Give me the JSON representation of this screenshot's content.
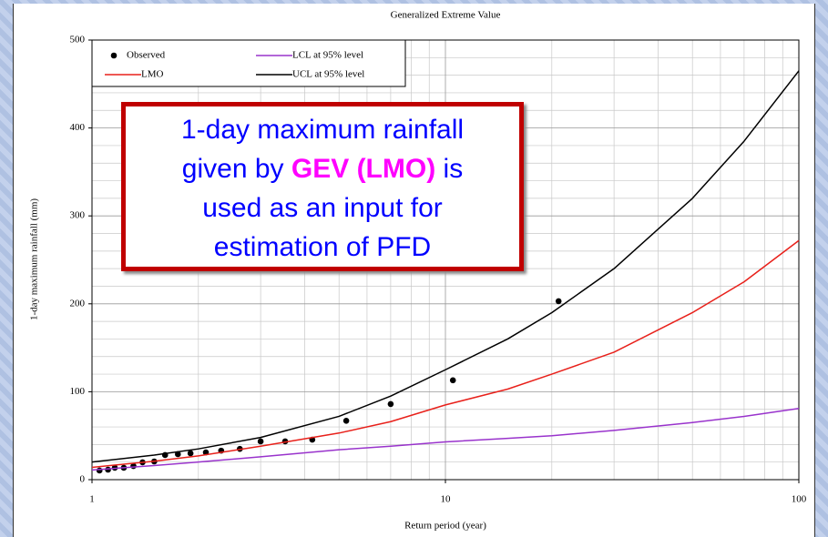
{
  "chart_data": {
    "type": "line",
    "title": "Generalized Extreme Value",
    "x_label": "Return period (year)",
    "y_label": "1-day maximum rainfall (mm)",
    "xscale": "log",
    "xlim": [
      1,
      100
    ],
    "xticks": [
      1,
      10,
      100
    ],
    "xminorticks": [
      2,
      3,
      4,
      5,
      6,
      7,
      8,
      9,
      20,
      30,
      40,
      50,
      60,
      70,
      80,
      90
    ],
    "ylim": [
      0,
      500
    ],
    "yticks": [
      0,
      100,
      200,
      300,
      400,
      500
    ],
    "yminorticks": [
      20,
      40,
      60,
      80,
      120,
      140,
      160,
      180,
      220,
      240,
      260,
      280,
      320,
      340,
      360,
      380,
      420,
      440,
      460,
      480
    ],
    "grid": true,
    "legend": "upper left",
    "series": [
      {
        "name": "Observed",
        "color": "#000000",
        "marker": true,
        "x": [
          1.05,
          1.11,
          1.16,
          1.23,
          1.31,
          1.39,
          1.5,
          1.61,
          1.75,
          1.9,
          2.1,
          2.32,
          2.62,
          3.0,
          3.52,
          4.2,
          5.24,
          7.0,
          10.5,
          20.9
        ],
        "values": [
          10.4,
          11.4,
          13.5,
          13.5,
          15.5,
          19.7,
          20.7,
          28,
          29,
          30,
          31,
          33,
          35,
          43.5,
          43.5,
          45.5,
          67,
          86,
          113,
          203
        ]
      },
      {
        "name": "LCL at 95% level",
        "color": "#9933cc",
        "marker": false,
        "x": [
          1,
          1.5,
          2,
          3,
          5,
          7,
          10,
          15,
          20,
          30,
          50,
          70,
          100
        ],
        "values": [
          11,
          16,
          20,
          26,
          34,
          38,
          43,
          47,
          50,
          56,
          65,
          72,
          81
        ]
      },
      {
        "name": "LMO",
        "color": "#e8201a",
        "marker": false,
        "x": [
          1,
          1.5,
          2,
          3,
          5,
          7,
          10,
          15,
          20,
          30,
          50,
          70,
          100
        ],
        "values": [
          14,
          21,
          27,
          38,
          53,
          66,
          85,
          103,
          120,
          145,
          190,
          225,
          272
        ]
      },
      {
        "name": "UCL at 95% level",
        "color": "#000000",
        "marker": false,
        "x": [
          1,
          1.5,
          2,
          3,
          5,
          7,
          10,
          15,
          20,
          30,
          50,
          70,
          100
        ],
        "values": [
          20,
          28,
          35,
          48,
          72,
          95,
          125,
          160,
          190,
          240,
          320,
          385,
          465
        ]
      }
    ],
    "annotation": [
      [
        "1-day maximum rainfall"
      ],
      [
        "given by ",
        "GEV (LMO)",
        " is"
      ],
      [
        "used as an input for"
      ],
      [
        "estimation of PFD"
      ]
    ]
  }
}
